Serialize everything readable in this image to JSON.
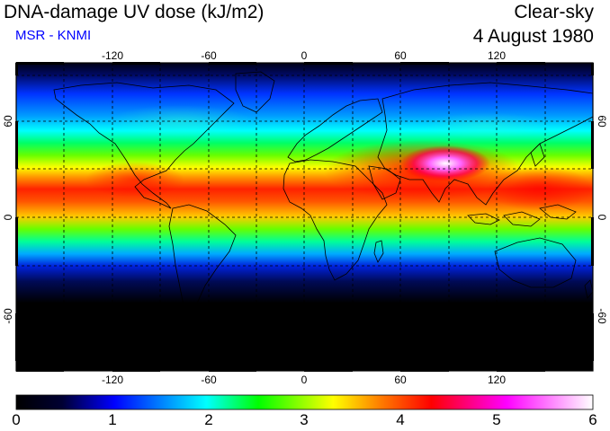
{
  "header": {
    "title": "DNA-damage UV dose (kJ/m2)",
    "subtitle": "MSR - KNMI",
    "condition": "Clear-sky",
    "date": "4 August 1980"
  },
  "colors": {
    "subtitle": "#0000ff",
    "colormap": [
      "#000000",
      "#000033",
      "#0000ff",
      "#00ffff",
      "#00ff00",
      "#ffff00",
      "#ff7f00",
      "#ff0000",
      "#ff00ff",
      "#ffffff"
    ]
  },
  "map": {
    "lon_ticks": [
      "-120",
      "-60",
      "0",
      "60",
      "120"
    ],
    "lat_ticks_left": [
      "60",
      "0",
      "-60"
    ],
    "lat_ticks_right": [
      "60",
      "0",
      "-60"
    ],
    "lon_range": [
      -180,
      180
    ],
    "lat_range": [
      -90,
      90
    ],
    "grid_lines": true
  },
  "colorbar": {
    "labels": [
      "0",
      "1",
      "2",
      "3",
      "4",
      "5",
      "6"
    ],
    "range": [
      0,
      6
    ]
  }
}
